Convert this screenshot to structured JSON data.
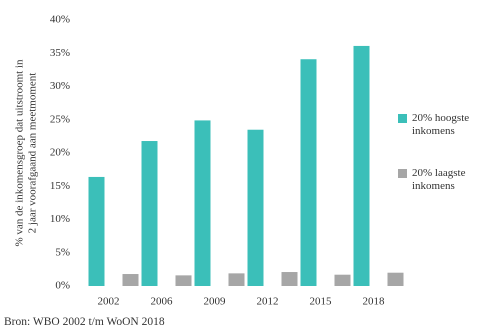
{
  "chart_data": {
    "type": "bar",
    "y_label_lines": [
      "% van de inkomensgroep dat uitstroomt in",
      "2 jaar voorafgaand aan meetmoment"
    ],
    "categories": [
      "2002",
      "2006",
      "2009",
      "2012",
      "2015",
      "2018"
    ],
    "series": [
      {
        "name": "20% hoogste inkomens",
        "color": "#3bbfb9",
        "values": [
          16.4,
          21.8,
          24.9,
          23.5,
          34.1,
          36.1
        ]
      },
      {
        "name": "20% laagste inkomens",
        "color": "#a6a6a6",
        "values": [
          1.8,
          1.6,
          1.9,
          2.1,
          1.7,
          2.0
        ]
      }
    ],
    "ylim": [
      0,
      40
    ],
    "yticks": [
      {
        "value": 0,
        "label": "0%"
      },
      {
        "value": 5,
        "label": "5%"
      },
      {
        "value": 10,
        "label": "10%"
      },
      {
        "value": 15,
        "label": "15%"
      },
      {
        "value": 20,
        "label": "20%"
      },
      {
        "value": 25,
        "label": "25%"
      },
      {
        "value": 30,
        "label": "30%"
      },
      {
        "value": 35,
        "label": "35%"
      },
      {
        "value": 40,
        "label": "40%"
      }
    ],
    "grid": false,
    "legend_position": "right",
    "source": "Bron: WBO 2002 t/m WoON 2018"
  }
}
